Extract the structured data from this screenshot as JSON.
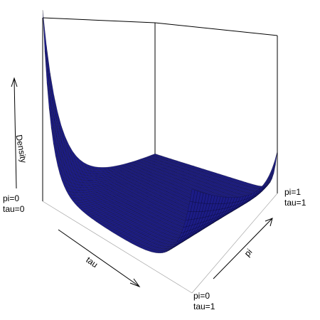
{
  "chart_data": {
    "type": "surface3d",
    "xlabel": "tau",
    "ylabel": "pi",
    "zlabel": "Density",
    "corner_labels": {
      "left_top": {
        "pi": "pi=0",
        "tau": "tau=0"
      },
      "front_bottom": {
        "pi": "pi=0",
        "tau": "tau=1"
      },
      "right": {
        "pi": "pi=1",
        "tau": "tau=1"
      }
    },
    "x_range": [
      0,
      1
    ],
    "y_range": [
      0,
      1
    ],
    "z_range": [
      0,
      6
    ],
    "grid": {
      "tau_steps": 70,
      "pi_steps": 30
    },
    "surface_color": "#1c1c86",
    "edge_color": "#000000",
    "box_color": "#000000"
  }
}
